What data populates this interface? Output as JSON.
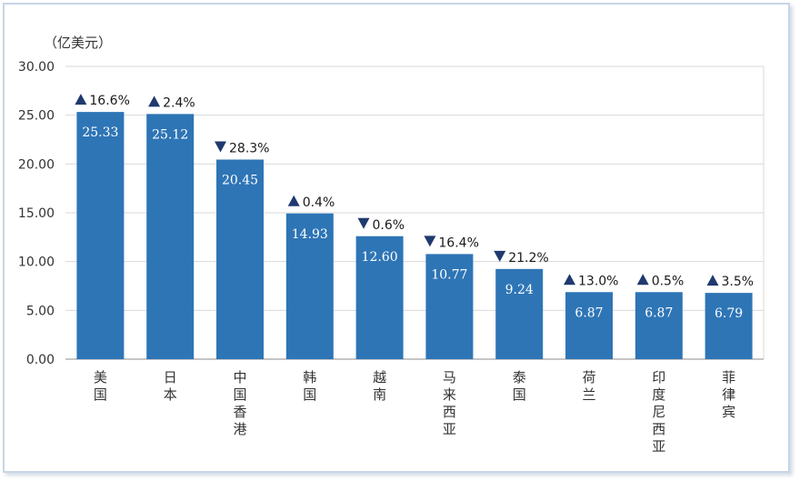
{
  "chart_data": {
    "type": "bar",
    "unit_label": "（亿美元）",
    "categories": [
      "美国",
      "日本",
      "中国香港",
      "韩国",
      "越南",
      "马来西亚",
      "泰国",
      "荷兰",
      "印度尼西亚",
      "菲律宾"
    ],
    "values": [
      25.33,
      25.12,
      20.45,
      14.93,
      12.6,
      10.77,
      9.24,
      6.87,
      6.87,
      6.79
    ],
    "value_labels": [
      "25.33",
      "25.12",
      "20.45",
      "14.93",
      "12.60",
      "10.77",
      "9.24",
      "6.87",
      "6.87",
      "6.79"
    ],
    "changes": [
      {
        "direction": "up",
        "text": "16.6%"
      },
      {
        "direction": "up",
        "text": "2.4%"
      },
      {
        "direction": "down",
        "text": "28.3%"
      },
      {
        "direction": "up",
        "text": "0.4%"
      },
      {
        "direction": "down",
        "text": "0.6%"
      },
      {
        "direction": "down",
        "text": "16.4%"
      },
      {
        "direction": "down",
        "text": "21.2%"
      },
      {
        "direction": "up",
        "text": "13.0%"
      },
      {
        "direction": "up",
        "text": "0.5%"
      },
      {
        "direction": "up",
        "text": "3.5%"
      }
    ],
    "yticks": [
      "0.00",
      "5.00",
      "10.00",
      "15.00",
      "20.00",
      "25.00",
      "30.00"
    ],
    "ylim": [
      0,
      30
    ],
    "grid": true,
    "bar_color": "#2e75b6"
  }
}
